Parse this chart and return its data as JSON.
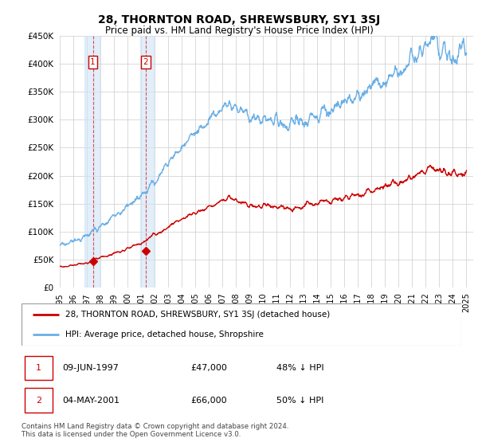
{
  "title": "28, THORNTON ROAD, SHREWSBURY, SY1 3SJ",
  "subtitle": "Price paid vs. HM Land Registry's House Price Index (HPI)",
  "xlim_start": 1995.0,
  "xlim_end": 2025.5,
  "ylim_min": 0,
  "ylim_max": 450000,
  "yticks": [
    0,
    50000,
    100000,
    150000,
    200000,
    250000,
    300000,
    350000,
    400000,
    450000
  ],
  "ytick_labels": [
    "£0",
    "£50K",
    "£100K",
    "£150K",
    "£200K",
    "£250K",
    "£300K",
    "£350K",
    "£400K",
    "£450K"
  ],
  "sale1_date": 1997.44,
  "sale1_price": 47000,
  "sale2_date": 2001.34,
  "sale2_price": 66000,
  "hpi_color": "#6aafe6",
  "price_color": "#cc0000",
  "background_color": "#ffffff",
  "grid_color": "#cccccc",
  "legend_label_price": "28, THORNTON ROAD, SHREWSBURY, SY1 3SJ (detached house)",
  "legend_label_hpi": "HPI: Average price, detached house, Shropshire",
  "footnote": "Contains HM Land Registry data © Crown copyright and database right 2024.\nThis data is licensed under the Open Government Licence v3.0.",
  "xticks": [
    1995,
    1996,
    1997,
    1998,
    1999,
    2000,
    2001,
    2002,
    2003,
    2004,
    2005,
    2006,
    2007,
    2008,
    2009,
    2010,
    2011,
    2012,
    2013,
    2014,
    2015,
    2016,
    2017,
    2018,
    2019,
    2020,
    2021,
    2022,
    2023,
    2024,
    2025
  ],
  "hpi_seed": 17,
  "price_seed": 99,
  "shade_color": "#d0e4f5",
  "shade_alpha": 0.6
}
